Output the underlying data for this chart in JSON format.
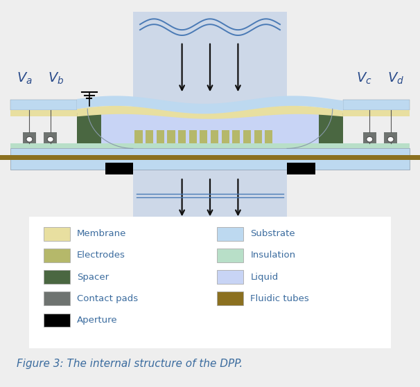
{
  "bg_color": "#eeeeee",
  "fig_caption": "Figure 3: The internal structure of the DPP.",
  "caption_color": "#3a6b9e",
  "legend_items_left": [
    {
      "label": "Membrane",
      "color": "#e8dfa0"
    },
    {
      "label": "Electrodes",
      "color": "#b5b86a"
    },
    {
      "label": "Spacer",
      "color": "#4a6741"
    },
    {
      "label": "Contact pads",
      "color": "#6e7370"
    },
    {
      "label": "Aperture",
      "color": "#000000"
    }
  ],
  "legend_items_right": [
    {
      "label": "Substrate",
      "color": "#bdd9f0"
    },
    {
      "label": "Insulation",
      "color": "#b8dfc8"
    },
    {
      "label": "Liquid",
      "color": "#c8d4f5"
    },
    {
      "label": "Fluidic tubes",
      "color": "#8b7020"
    }
  ],
  "colors": {
    "membrane": "#e8dfa0",
    "electrodes": "#b5b86a",
    "spacer": "#4a6741",
    "contact_pads": "#6e7370",
    "aperture": "#000000",
    "substrate": "#bdd9f0",
    "insulation": "#b8dfc8",
    "liquid": "#c8d4f5",
    "fluidic_tubes": "#8b7020",
    "beam_top": "#cdd8e8",
    "beam_bot": "#cdd8e8",
    "wave_line": "#4a7ab5",
    "arrow": "#111111",
    "outline": "#8899aa"
  }
}
